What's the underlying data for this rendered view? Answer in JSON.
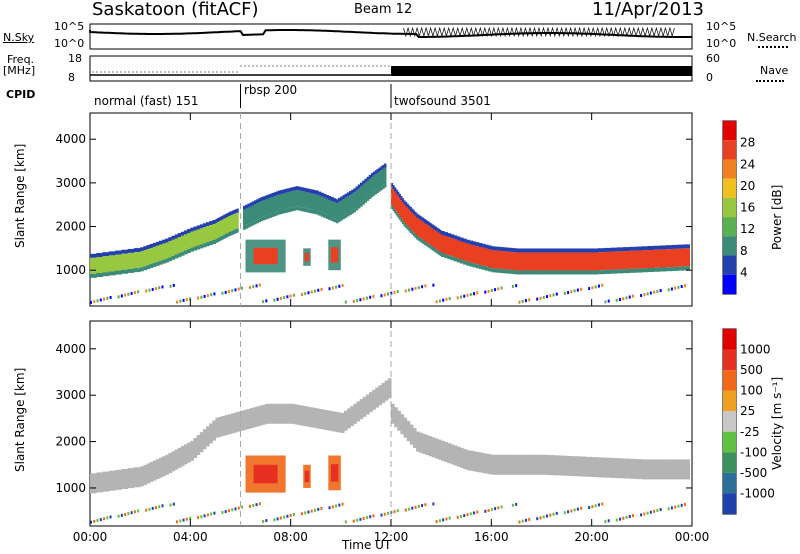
{
  "header": {
    "station": "Saskatoon (fitACF)",
    "beam": "Beam 12",
    "date": "11/Apr/2013"
  },
  "noise_panel": {
    "left_label": "N.Sky",
    "right_label": "N.Search",
    "left_ticks": [
      "10^5",
      "10^0"
    ],
    "right_ticks": [
      "10^5",
      "10^0"
    ]
  },
  "freq_panel": {
    "left_label_line1": "Freq.",
    "left_label_line2": "[MHz]",
    "right_label": "Nave",
    "left_ticks": [
      "18",
      "8"
    ],
    "right_ticks": [
      "60",
      "0"
    ]
  },
  "cpid": {
    "label": "CPID",
    "segments": [
      {
        "name": "normal (fast) 151",
        "start_hour": 0
      },
      {
        "name": "rbsp 200",
        "start_hour": 6
      },
      {
        "name": "twofsound 3501",
        "start_hour": 12
      }
    ]
  },
  "x_axis": {
    "label": "Time UT",
    "ticks": [
      "00:00",
      "04:00",
      "08:00",
      "12:00",
      "16:00",
      "20:00",
      "00:00"
    ]
  },
  "colors": {
    "power_scale": [
      "#0000ff",
      "#2440b0",
      "#3c8a78",
      "#58b050",
      "#98c840",
      "#f0c020",
      "#f08020",
      "#e84020",
      "#e00000"
    ],
    "velocity_scale": [
      "#2040b0",
      "#2c6e98",
      "#3c9060",
      "#60c040",
      "#c8c8c8",
      "#f0a020",
      "#f06818",
      "#e83020",
      "#e00000"
    ],
    "ground_scatter": "#b4b4b4"
  },
  "chart_data": [
    {
      "type": "heatmap",
      "panel": "power",
      "ylabel": "Slant Range [km]",
      "yticks": [
        1000,
        2000,
        3000,
        4000
      ],
      "ylim": [
        180,
        4600
      ],
      "xlim": [
        0,
        24
      ],
      "colorbar": {
        "label": "Power [dB]",
        "ticks": [
          "28",
          "24",
          "20",
          "16",
          "12",
          "8",
          "4"
        ]
      },
      "bands": [
        {
          "times": [
            0,
            2,
            3,
            4,
            5,
            5.5,
            5.9
          ],
          "range": [
            1100,
            1250,
            1450,
            1700,
            1900,
            2050,
            2150
          ],
          "level": 0.45
        },
        {
          "times": [
            6.1,
            6.8,
            7.5,
            8.2,
            9,
            9.8,
            10.5,
            11.2,
            11.8
          ],
          "range": [
            2200,
            2400,
            2550,
            2650,
            2550,
            2350,
            2600,
            2950,
            3200
          ],
          "level": 0.3
        },
        {
          "times": [
            12,
            12.5,
            13,
            13.5,
            14,
            15,
            16,
            17,
            18,
            20,
            22,
            23.9
          ],
          "range": [
            2700,
            2300,
            2000,
            1800,
            1600,
            1400,
            1250,
            1200,
            1200,
            1200,
            1250,
            1300
          ],
          "level": 0.85
        }
      ],
      "patches": [
        {
          "t0": 6.2,
          "t1": 7.8,
          "r0": 950,
          "r1": 1700,
          "level": 0.85
        },
        {
          "t0": 9.5,
          "t1": 10.0,
          "r0": 1000,
          "r1": 1700,
          "level": 0.85
        },
        {
          "t0": 8.5,
          "t1": 8.8,
          "r0": 1100,
          "r1": 1500,
          "level": 0.9
        }
      ]
    },
    {
      "type": "heatmap",
      "panel": "velocity",
      "ylabel": "Slant Range [km]",
      "yticks": [
        1000,
        2000,
        3000,
        4000
      ],
      "ylim": [
        180,
        4600
      ],
      "xlim": [
        0,
        24
      ],
      "colorbar": {
        "label": "Velocity [m s⁻¹]",
        "ticks": [
          "1000",
          "500",
          "100",
          "25",
          "-25",
          "-100",
          "-500",
          "-1000"
        ]
      },
      "bands": [
        {
          "times": [
            0,
            2,
            3,
            4,
            5,
            6,
            7,
            8,
            9,
            10,
            11,
            12
          ],
          "range": [
            1100,
            1250,
            1500,
            1800,
            2300,
            2450,
            2600,
            2600,
            2500,
            2400,
            2800,
            3200
          ],
          "level": 0.5
        },
        {
          "times": [
            12,
            13,
            14,
            15,
            16,
            18,
            20,
            22,
            23.9
          ],
          "range": [
            2600,
            2000,
            1800,
            1600,
            1500,
            1500,
            1450,
            1400,
            1400
          ],
          "level": 0.5
        }
      ],
      "patches": [
        {
          "t0": 6.2,
          "t1": 7.8,
          "r0": 900,
          "r1": 1700,
          "level": 0.85
        },
        {
          "t0": 9.5,
          "t1": 10.0,
          "r0": 950,
          "r1": 1700,
          "level": 0.85
        },
        {
          "t0": 8.5,
          "t1": 8.8,
          "r0": 1000,
          "r1": 1500,
          "level": 0.9
        }
      ]
    }
  ]
}
